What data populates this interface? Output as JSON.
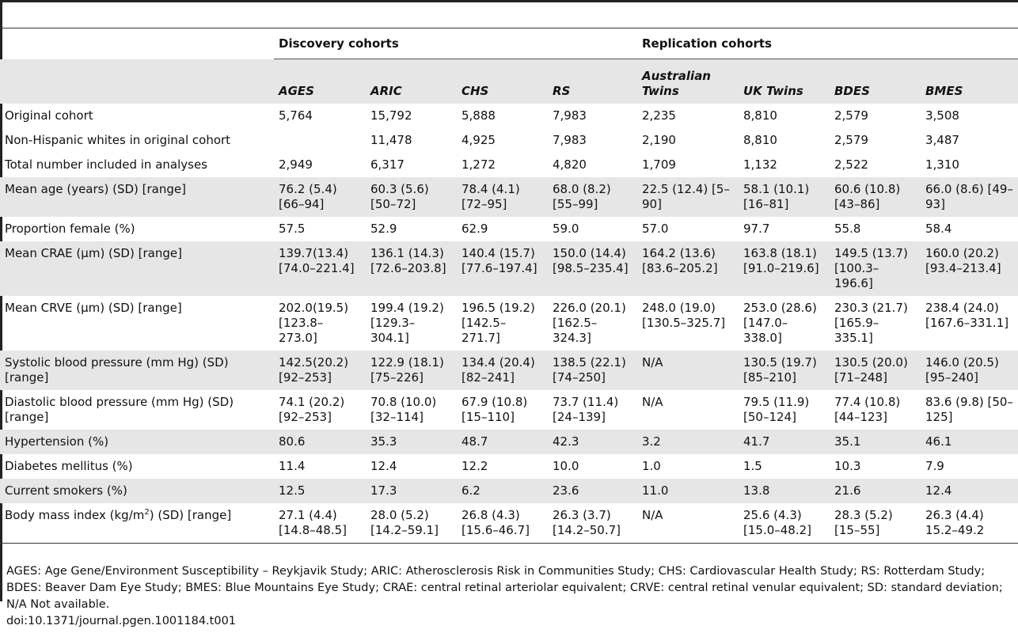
{
  "groups": {
    "discovery": "Discovery cohorts",
    "replication": "Replication cohorts"
  },
  "columns": [
    "AGES",
    "ARIC",
    "CHS",
    "RS",
    "Australian Twins",
    "UK Twins",
    "BDES",
    "BMES"
  ],
  "rows": [
    {
      "label": "Original cohort",
      "cells": [
        "5,764",
        "15,792",
        "5,888",
        "7,983",
        "2,235",
        "8,810",
        "2,579",
        "3,508"
      ]
    },
    {
      "label": "Non-Hispanic whites in original cohort",
      "cells": [
        "",
        "11,478",
        "4,925",
        "7,983",
        "2,190",
        "8,810",
        "2,579",
        "3,487"
      ]
    },
    {
      "label": "Total number included in analyses",
      "cells": [
        "2,949",
        "6,317",
        "1,272",
        "4,820",
        "1,709",
        "1,132",
        "2,522",
        "1,310"
      ]
    },
    {
      "label": "Mean age (years) (SD) [range]",
      "cells": [
        "76.2 (5.4) [66–94]",
        "60.3 (5.6) [50–72]",
        "78.4 (4.1) [72–95]",
        "68.0 (8.2) [55–99]",
        "22.5 (12.4) [5–90]",
        "58.1 (10.1) [16–81]",
        "60.6 (10.8) [43–86]",
        "66.0 (8.6) [49–93]"
      ]
    },
    {
      "label": "Proportion female (%)",
      "cells": [
        "57.5",
        "52.9",
        "62.9",
        "59.0",
        "57.0",
        "97.7",
        "55.8",
        "58.4"
      ]
    },
    {
      "label": "Mean CRAE (µm) (SD) [range]",
      "cells": [
        "139.7(13.4) [74.0–221.4]",
        "136.1 (14.3) [72.6–203.8]",
        "140.4 (15.7) [77.6–197.4]",
        "150.0 (14.4) [98.5–235.4]",
        "164.2 (13.6) [83.6–205.2]",
        "163.8 (18.1) [91.0–219.6]",
        "149.5 (13.7) [100.3–196.6]",
        "160.0 (20.2) [93.4–213.4]"
      ]
    },
    {
      "label": "Mean CRVE (µm) (SD) [range]",
      "cells": [
        "202.0(19.5) [123.8–273.0]",
        "199.4 (19.2) [129.3–304.1]",
        "196.5 (19.2) [142.5–271.7]",
        "226.0 (20.1) [162.5–324.3]",
        "248.0 (19.0) [130.5–325.7]",
        "253.0 (28.6) [147.0–338.0]",
        "230.3 (21.7) [165.9–335.1]",
        "238.4 (24.0) [167.6–331.1]"
      ]
    },
    {
      "label": "Systolic blood pressure (mm Hg) (SD) [range]",
      "cells": [
        "142.5(20.2) [92–253]",
        "122.9 (18.1) [75–226]",
        "134.4 (20.4) [82–241]",
        "138.5 (22.1) [74–250]",
        "N/A",
        "130.5 (19.7) [85–210]",
        "130.5 (20.0) [71–248]",
        "146.0 (20.5) [95–240]"
      ]
    },
    {
      "label": "Diastolic blood pressure (mm Hg) (SD) [range]",
      "cells": [
        "74.1 (20.2) [92–253]",
        "70.8 (10.0) [32–114]",
        "67.9 (10.8) [15–110]",
        "73.7 (11.4) [24–139]",
        "N/A",
        "79.5 (11.9) [50–124]",
        "77.4 (10.8) [44–123]",
        "83.6 (9.8) [50–125]"
      ]
    },
    {
      "label": "Hypertension (%)",
      "cells": [
        "80.6",
        "35.3",
        "48.7",
        "42.3",
        "3.2",
        "41.7",
        "35.1",
        "46.1"
      ]
    },
    {
      "label": "Diabetes mellitus (%)",
      "cells": [
        "11.4",
        "12.4",
        "12.2",
        "10.0",
        "1.0",
        "1.5",
        "10.3",
        "7.9"
      ]
    },
    {
      "label": "Current smokers (%)",
      "cells": [
        "12.5",
        "17.3",
        "6.2",
        "23.6",
        "11.0",
        "13.8",
        "21.6",
        "12.4"
      ]
    },
    {
      "label_pre": "Body mass index (kg/m",
      "label_sup": "2",
      "label_post": ") (SD) [range]",
      "cells": [
        "27.1 (4.4) [14.8–48.5]",
        "28.0 (5.2) [14.2–59.1]",
        "26.8 (4.3) [15.6–46.7]",
        "26.3 (3.7) [14.2–50.7]",
        "N/A",
        "25.6 (4.3) [15.0–48.2]",
        "28.3 (5.2) [15–55]",
        "26.3 (4.4) 15.2–49.2"
      ]
    }
  ],
  "footnote": "AGES: Age Gene/Environment Susceptibility – Reykjavik Study; ARIC: Atherosclerosis Risk in Communities Study; CHS: Cardiovascular Health Study; RS: Rotterdam Study; BDES: Beaver Dam Eye Study; BMES: Blue Mountains Eye Study; CRAE: central retinal arteriolar equivalent; CRVE: central retinal venular equivalent; SD: standard deviation; N/A Not available.",
  "doi": "doi:10.1371/journal.pgen.1001184.t001"
}
